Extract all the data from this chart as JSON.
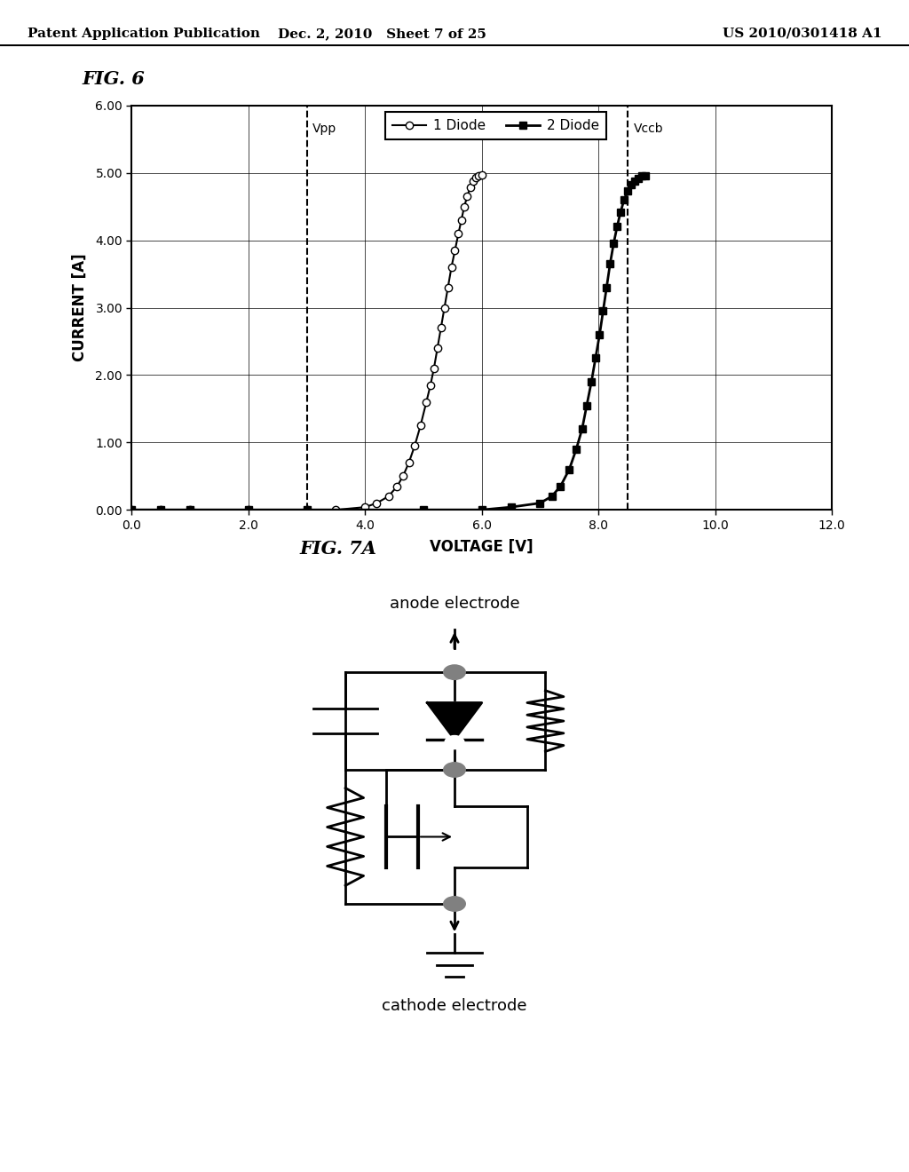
{
  "header_left": "Patent Application Publication",
  "header_center": "Dec. 2, 2010   Sheet 7 of 25",
  "header_right": "US 2010/0301418 A1",
  "fig6_title": "FIG. 6",
  "fig7a_title": "FIG. 7A",
  "xlabel": "VOLTAGE [V]",
  "ylabel": "CURRENT [A]",
  "xlim": [
    0.0,
    12.0
  ],
  "ylim": [
    0.0,
    6.0
  ],
  "xticks": [
    0.0,
    2.0,
    4.0,
    6.0,
    8.0,
    10.0,
    12.0
  ],
  "yticks": [
    0.0,
    1.0,
    2.0,
    3.0,
    4.0,
    5.0,
    6.0
  ],
  "xtick_labels": [
    "0.0",
    "2.0",
    "4.0",
    "6.0",
    "8.0",
    "10.0",
    "12.0"
  ],
  "ytick_labels": [
    "0.00",
    "1.00",
    "2.00",
    "3.00",
    "4.00",
    "5.00",
    "6.00"
  ],
  "vpp_x": 3.0,
  "vccb_x": 8.5,
  "diode1_x": [
    0.0,
    0.5,
    1.0,
    2.0,
    3.0,
    3.5,
    4.0,
    4.2,
    4.4,
    4.55,
    4.65,
    4.75,
    4.85,
    4.95,
    5.05,
    5.12,
    5.18,
    5.24,
    5.3,
    5.36,
    5.42,
    5.48,
    5.54,
    5.6,
    5.65,
    5.7,
    5.75,
    5.8,
    5.85,
    5.9,
    5.95,
    6.0
  ],
  "diode1_y": [
    0.0,
    0.0,
    0.0,
    0.0,
    0.0,
    0.0,
    0.04,
    0.1,
    0.2,
    0.35,
    0.5,
    0.7,
    0.95,
    1.25,
    1.6,
    1.85,
    2.1,
    2.4,
    2.7,
    3.0,
    3.3,
    3.6,
    3.85,
    4.1,
    4.3,
    4.5,
    4.65,
    4.78,
    4.88,
    4.93,
    4.96,
    4.97
  ],
  "diode2_x": [
    0.0,
    0.5,
    1.0,
    2.0,
    3.0,
    5.0,
    6.0,
    6.5,
    7.0,
    7.2,
    7.35,
    7.5,
    7.62,
    7.72,
    7.8,
    7.88,
    7.95,
    8.02,
    8.08,
    8.14,
    8.2,
    8.26,
    8.32,
    8.38,
    8.44,
    8.5,
    8.56,
    8.62,
    8.68,
    8.74,
    8.8
  ],
  "diode2_y": [
    0.0,
    0.0,
    0.0,
    0.0,
    0.0,
    0.0,
    0.0,
    0.04,
    0.1,
    0.2,
    0.35,
    0.6,
    0.9,
    1.2,
    1.55,
    1.9,
    2.25,
    2.6,
    2.95,
    3.3,
    3.65,
    3.95,
    4.2,
    4.42,
    4.6,
    4.73,
    4.82,
    4.88,
    4.92,
    4.95,
    4.96
  ],
  "legend_label1": "1 Diode",
  "legend_label2": "2 Diode",
  "background_color": "#ffffff",
  "plot_bg": "#ffffff",
  "line_color": "#000000",
  "anode_label": "anode electrode",
  "cathode_label": "cathode electrode"
}
